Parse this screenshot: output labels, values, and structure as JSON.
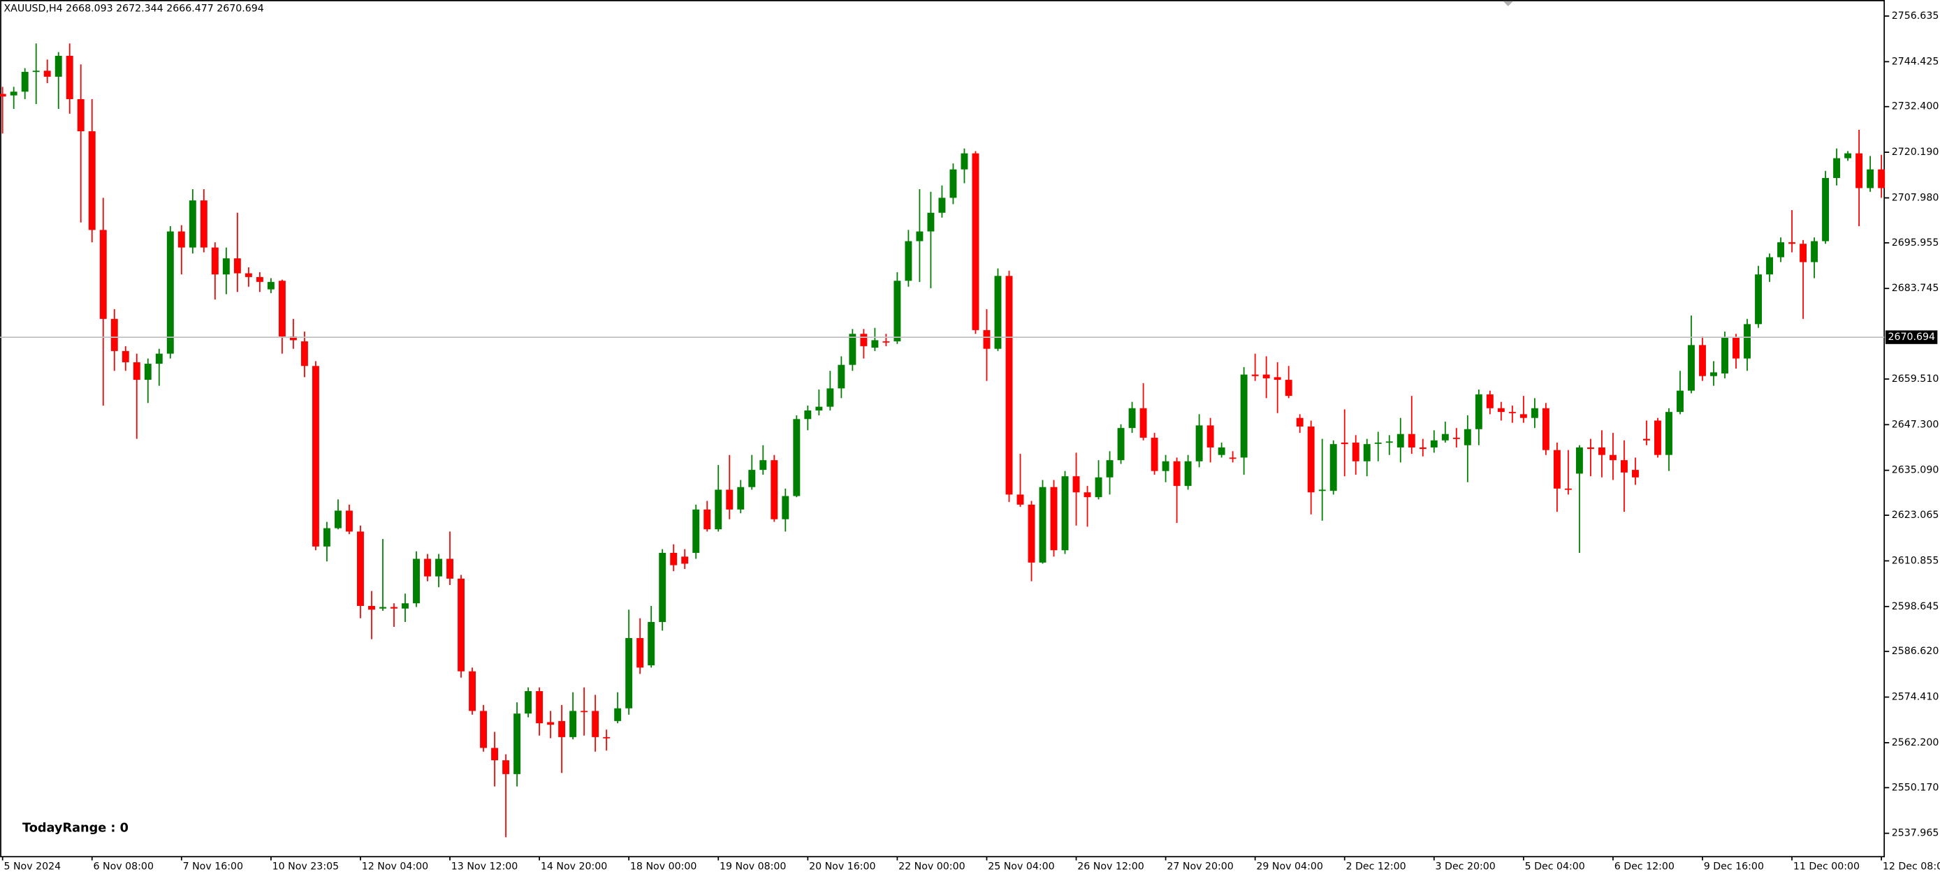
{
  "chart_data": {
    "type": "candlestick",
    "title": "XAUUSD,H4  2668.093 2672.344 2666.477 2670.694",
    "annotation": "TodayRange : 0",
    "up_color": "#008000",
    "down_color": "#ff0000",
    "grid": false,
    "current_price": 2670.694,
    "ylim": [
      2531.7,
      2760.93
    ],
    "yticks": [
      2756.635,
      2744.425,
      {
        "value": 2732.4,
        "label": "2732.400"
      },
      {
        "value": 2720.19,
        "label": "2720.190"
      },
      {
        "value": 2707.98,
        "label": "2707.980"
      },
      2695.955,
      2683.745,
      {
        "value": 2659.51,
        "label": "2659.510"
      },
      {
        "value": 2647.3,
        "label": "2647.300"
      },
      {
        "value": 2635.09,
        "label": "2635.090"
      },
      2623.065,
      2610.855,
      2598.645,
      {
        "value": 2586.62,
        "label": "2586.620"
      },
      {
        "value": 2574.41,
        "label": "2574.410"
      },
      {
        "value": 2562.2,
        "label": "2562.200"
      },
      {
        "value": 2550.17,
        "label": "2550.170"
      },
      2537.965
    ],
    "categories": [
      "5 Nov 2024",
      null,
      null,
      null,
      null,
      null,
      null,
      null,
      "6 Nov 08:00",
      null,
      null,
      null,
      null,
      null,
      null,
      null,
      "7 Nov 16:00",
      null,
      null,
      null,
      null,
      null,
      null,
      null,
      "10 Nov 23:05",
      null,
      null,
      null,
      null,
      null,
      null,
      null,
      "12 Nov 04:00",
      null,
      null,
      null,
      null,
      null,
      null,
      null,
      "13 Nov 12:00",
      null,
      null,
      null,
      null,
      null,
      null,
      null,
      "14 Nov 20:00",
      null,
      null,
      null,
      null,
      null,
      null,
      null,
      "18 Nov 00:00",
      null,
      null,
      null,
      null,
      null,
      null,
      null,
      "19 Nov 08:00",
      null,
      null,
      null,
      null,
      null,
      null,
      null,
      "20 Nov 16:00",
      null,
      null,
      null,
      null,
      null,
      null,
      null,
      "22 Nov 00:00",
      null,
      null,
      null,
      null,
      null,
      null,
      null,
      "25 Nov 04:00",
      null,
      null,
      null,
      null,
      null,
      null,
      null,
      "26 Nov 12:00",
      null,
      null,
      null,
      null,
      null,
      null,
      null,
      "27 Nov 20:00",
      null,
      null,
      null,
      null,
      null,
      null,
      null,
      "29 Nov 04:00",
      null,
      null,
      null,
      null,
      null,
      null,
      null,
      "2 Dec 12:00",
      null,
      null,
      null,
      null,
      null,
      null,
      null,
      "3 Dec 20:00",
      null,
      null,
      null,
      null,
      null,
      null,
      null,
      "5 Dec 04:00",
      null,
      null,
      null,
      null,
      null,
      null,
      null,
      "6 Dec 12:00",
      null,
      null,
      null,
      null,
      null,
      null,
      null,
      "9 Dec 16:00",
      null,
      null,
      null,
      null,
      null,
      null,
      null,
      "11 Dec 00:00",
      null,
      null,
      null,
      null,
      null,
      null,
      null,
      "12 Dec 08:00"
    ],
    "open": [
      2735.8,
      2735.4,
      2736.4,
      2741.7,
      2742.0,
      2740.4,
      2746.0,
      2734.4,
      2725.8,
      2699.4,
      2675.6,
      2667.0,
      2664.0,
      2659.3,
      2663.6,
      2666.3,
      2699.0,
      2694.7,
      2707.3,
      2694.7,
      2687.5,
      2691.8,
      2687.8,
      2686.8,
      2683.5,
      2685.8,
      2670.9,
      2669.6,
      2663.0,
      2614.7,
      2619.6,
      2624.3,
      2618.7,
      2598.8,
      2598.1,
      2598.5,
      2598.1,
      2599.5,
      2611.4,
      2606.7,
      2611.4,
      2606.1,
      2581.3,
      2570.7,
      2560.8,
      2557.5,
      2553.8,
      2570.0,
      2576.0,
      2567.7,
      2568.0,
      2563.7,
      2570.7,
      2570.7,
      2563.7,
      2568.0,
      2571.4,
      2590.2,
      2582.9,
      2594.5,
      2613.0,
      2612.0,
      2613.0,
      2624.6,
      2619.3,
      2629.9,
      2624.6,
      2630.6,
      2635.2,
      2637.8,
      2622.0,
      2628.2,
      2648.8,
      2651.1,
      2652.1,
      2657.0,
      2663.3,
      2671.6,
      2667.9,
      2669.6,
      2669.6,
      2685.8,
      2696.4,
      2699.0,
      2704.0,
      2708.0,
      2715.6,
      2719.9,
      2672.6,
      2667.6,
      2687.1,
      2628.6,
      2625.9,
      2610.4,
      2630.6,
      2613.7,
      2633.5,
      2629.2,
      2627.9,
      2633.2,
      2637.8,
      2646.4,
      2651.7,
      2643.8,
      2634.9,
      2637.5,
      2630.9,
      2637.5,
      2647.1,
      2639.2,
      2638.5,
      2638.5,
      2660.7,
      2660.7,
      2660.0,
      2659.3,
      2649.1,
      2646.8,
      2629.6,
      2629.6,
      2642.5,
      2642.5,
      2637.5,
      2642.5,
      2642.5,
      2641.2,
      2644.8,
      2641.2,
      2641.2,
      2643.1,
      2643.8,
      2641.8,
      2646.1,
      2655.4,
      2651.7,
      2650.7,
      2650.1,
      2649.1,
      2651.7,
      2640.5,
      2630.2,
      2634.2,
      2641.2,
      2641.2,
      2639.2,
      2637.8,
      2635.2,
      2643.5,
      2648.4,
      2639.2,
      2650.7,
      2656.4,
      2668.6,
      2660.3,
      2661.0,
      2670.6,
      2665.0,
      2674.2,
      2687.5,
      2692.1,
      2696.1,
      2695.7,
      2690.8,
      2696.4,
      2713.3,
      2718.6,
      2719.9,
      2710.6,
      2715.6
    ],
    "high": [
      2737.7,
      2737.7,
      2742.7,
      2749.3,
      2745.0,
      2747.0,
      2749.3,
      2743.7,
      2734.4,
      2708.0,
      2678.2,
      2668.3,
      2666.3,
      2665.0,
      2667.6,
      2700.4,
      2700.7,
      2710.3,
      2710.3,
      2696.1,
      2694.7,
      2704.0,
      2689.4,
      2688.1,
      2686.5,
      2686.1,
      2675.6,
      2672.2,
      2664.3,
      2621.3,
      2627.3,
      2625.9,
      2620.3,
      2602.8,
      2616.7,
      2599.5,
      2602.1,
      2613.4,
      2612.7,
      2612.7,
      2618.7,
      2607.1,
      2582.3,
      2572.3,
      2565.1,
      2559.1,
      2573.0,
      2577.0,
      2577.0,
      2570.7,
      2572.3,
      2575.7,
      2577.0,
      2575.0,
      2565.7,
      2575.7,
      2597.8,
      2595.5,
      2598.8,
      2614.0,
      2615.3,
      2614.0,
      2625.9,
      2626.9,
      2636.5,
      2639.2,
      2632.5,
      2639.2,
      2641.8,
      2639.2,
      2630.2,
      2649.8,
      2652.4,
      2656.7,
      2661.7,
      2665.6,
      2672.9,
      2672.9,
      2673.2,
      2671.6,
      2688.1,
      2699.4,
      2710.3,
      2709.6,
      2711.3,
      2717.2,
      2721.2,
      2720.5,
      2678.2,
      2689.1,
      2688.5,
      2639.5,
      2626.9,
      2632.5,
      2632.5,
      2634.9,
      2639.8,
      2630.9,
      2637.8,
      2640.2,
      2647.4,
      2653.4,
      2658.4,
      2645.1,
      2639.2,
      2638.5,
      2639.2,
      2650.1,
      2649.1,
      2642.5,
      2640.2,
      2662.7,
      2666.3,
      2665.6,
      2664.0,
      2663.0,
      2650.1,
      2648.4,
      2643.5,
      2643.1,
      2651.4,
      2644.5,
      2643.5,
      2645.4,
      2644.5,
      2649.1,
      2655.0,
      2643.5,
      2645.8,
      2648.1,
      2646.4,
      2649.8,
      2656.7,
      2656.4,
      2653.4,
      2652.4,
      2655.0,
      2654.4,
      2653.1,
      2642.5,
      2640.5,
      2641.8,
      2643.5,
      2645.8,
      2645.1,
      2643.1,
      2638.5,
      2648.4,
      2649.1,
      2651.7,
      2661.7,
      2676.5,
      2670.9,
      2664.3,
      2672.2,
      2671.6,
      2675.6,
      2689.8,
      2693.1,
      2697.4,
      2704.7,
      2696.7,
      2697.4,
      2715.2,
      2721.2,
      2720.5,
      2726.2,
      2719.2,
      2719.5
    ],
    "low": [
      2725.2,
      2731.8,
      2734.4,
      2733.1,
      2738.7,
      2731.8,
      2730.5,
      2701.4,
      2696.1,
      2652.4,
      2661.7,
      2661.7,
      2643.5,
      2653.1,
      2657.7,
      2665.0,
      2687.5,
      2693.1,
      2693.4,
      2680.8,
      2682.2,
      2682.8,
      2684.2,
      2682.8,
      2682.5,
      2666.3,
      2667.6,
      2660.0,
      2613.7,
      2610.7,
      2619.3,
      2618.0,
      2595.5,
      2589.9,
      2597.5,
      2593.2,
      2594.5,
      2598.5,
      2605.4,
      2603.8,
      2604.4,
      2579.6,
      2569.7,
      2559.8,
      2550.5,
      2536.9,
      2550.5,
      2569.0,
      2564.1,
      2563.4,
      2554.1,
      2563.1,
      2564.1,
      2559.8,
      2560.1,
      2567.4,
      2569.7,
      2580.6,
      2582.3,
      2592.2,
      2608.1,
      2608.7,
      2611.4,
      2618.7,
      2618.7,
      2622.0,
      2623.6,
      2629.9,
      2633.9,
      2621.3,
      2618.7,
      2627.9,
      2645.8,
      2649.8,
      2651.1,
      2654.4,
      2661.7,
      2665.0,
      2667.0,
      2668.3,
      2668.9,
      2684.2,
      2685.5,
      2683.8,
      2702.7,
      2706.3,
      2711.9,
      2671.6,
      2659.0,
      2667.0,
      2626.6,
      2625.3,
      2605.4,
      2610.1,
      2612.0,
      2612.7,
      2620.3,
      2620.0,
      2627.3,
      2628.6,
      2636.8,
      2645.1,
      2643.1,
      2633.9,
      2631.9,
      2621.0,
      2629.9,
      2635.9,
      2637.2,
      2638.5,
      2637.2,
      2633.9,
      2659.0,
      2654.4,
      2650.4,
      2654.4,
      2645.1,
      2623.3,
      2621.6,
      2628.6,
      2633.5,
      2633.9,
      2633.5,
      2637.5,
      2639.2,
      2637.2,
      2639.5,
      2638.8,
      2639.8,
      2642.5,
      2641.2,
      2631.9,
      2641.8,
      2650.1,
      2648.4,
      2647.8,
      2647.8,
      2646.4,
      2639.2,
      2624.0,
      2628.6,
      2613.0,
      2633.5,
      2633.2,
      2632.5,
      2624.0,
      2631.2,
      2641.8,
      2638.5,
      2634.9,
      2650.1,
      2655.7,
      2659.0,
      2657.7,
      2659.7,
      2662.3,
      2661.7,
      2673.2,
      2685.5,
      2690.8,
      2693.4,
      2675.6,
      2686.5,
      2695.7,
      2711.3,
      2717.9,
      2700.4,
      2709.6,
      2708.0
    ],
    "close": [
      2735.1,
      2736.4,
      2741.7,
      2742.0,
      2740.4,
      2746.0,
      2734.4,
      2725.8,
      2699.4,
      2675.6,
      2667.0,
      2664.0,
      2659.3,
      2663.6,
      2666.3,
      2699.0,
      2694.7,
      2707.3,
      2694.7,
      2687.5,
      2691.8,
      2687.8,
      2686.8,
      2685.5,
      2685.5,
      2670.9,
      2669.9,
      2663.0,
      2614.7,
      2619.6,
      2624.3,
      2618.7,
      2598.8,
      2597.8,
      2598.5,
      2598.1,
      2599.5,
      2611.4,
      2606.7,
      2611.4,
      2606.1,
      2581.3,
      2570.7,
      2560.8,
      2557.5,
      2553.8,
      2570.0,
      2576.0,
      2567.4,
      2567.0,
      2563.7,
      2570.7,
      2570.4,
      2563.7,
      2563.4,
      2571.4,
      2590.2,
      2582.3,
      2594.5,
      2613.0,
      2609.7,
      2610.1,
      2624.6,
      2619.3,
      2629.9,
      2624.6,
      2630.6,
      2635.2,
      2637.8,
      2622.0,
      2628.2,
      2648.8,
      2651.1,
      2652.1,
      2657.0,
      2663.3,
      2671.6,
      2668.3,
      2669.9,
      2669.3,
      2685.8,
      2696.4,
      2699.0,
      2704.0,
      2708.0,
      2715.6,
      2719.9,
      2672.6,
      2667.6,
      2687.1,
      2628.6,
      2625.9,
      2610.4,
      2630.6,
      2613.7,
      2633.5,
      2629.2,
      2627.9,
      2633.2,
      2637.8,
      2646.4,
      2651.7,
      2643.8,
      2634.9,
      2637.5,
      2630.9,
      2637.5,
      2647.1,
      2641.2,
      2641.2,
      2638.2,
      2660.7,
      2660.3,
      2659.7,
      2659.3,
      2655.0,
      2646.8,
      2629.2,
      2629.9,
      2642.1,
      2642.1,
      2637.5,
      2642.1,
      2642.5,
      2642.8,
      2644.8,
      2641.2,
      2640.8,
      2643.1,
      2644.8,
      2643.5,
      2646.1,
      2655.4,
      2651.7,
      2650.7,
      2650.4,
      2649.1,
      2651.7,
      2640.5,
      2630.2,
      2629.9,
      2641.2,
      2640.8,
      2639.2,
      2637.8,
      2634.5,
      2633.2,
      2643.1,
      2639.2,
      2650.7,
      2656.4,
      2668.6,
      2660.3,
      2661.3,
      2670.6,
      2665.0,
      2674.2,
      2687.5,
      2692.1,
      2696.1,
      2695.7,
      2690.8,
      2696.4,
      2713.3,
      2718.6,
      2719.9,
      2710.6,
      2715.6,
      2710.6
    ]
  }
}
